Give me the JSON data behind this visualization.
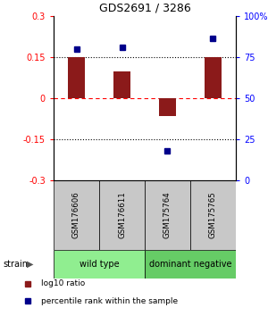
{
  "title": "GDS2691 / 3286",
  "samples": [
    "GSM176606",
    "GSM176611",
    "GSM175764",
    "GSM175765"
  ],
  "log10_ratio": [
    0.148,
    0.098,
    -0.065,
    0.148
  ],
  "percentile_rank": [
    80,
    81,
    18,
    86
  ],
  "groups": [
    {
      "label": "wild type",
      "color": "#90ee90",
      "span": [
        0,
        1
      ]
    },
    {
      "label": "dominant negative",
      "color": "#66cc66",
      "span": [
        2,
        3
      ]
    }
  ],
  "bar_color": "#8b1a1a",
  "dot_color": "#00008b",
  "ylim_left": [
    -0.3,
    0.3
  ],
  "ylim_right": [
    0,
    100
  ],
  "yticks_left": [
    -0.3,
    -0.15,
    0,
    0.15,
    0.3
  ],
  "yticks_right": [
    0,
    25,
    50,
    75,
    100
  ],
  "ytick_labels_left": [
    "-0.3",
    "-0.15",
    "0",
    "0.15",
    "0.3"
  ],
  "ytick_labels_right": [
    "0",
    "25",
    "50",
    "75",
    "100%"
  ],
  "strain_label": "strain",
  "legend_items": [
    {
      "color": "#8b1a1a",
      "label": "log10 ratio"
    },
    {
      "color": "#00008b",
      "label": "percentile rank within the sample"
    }
  ],
  "sample_box_color": "#c8c8c8",
  "bg_color": "#ffffff"
}
